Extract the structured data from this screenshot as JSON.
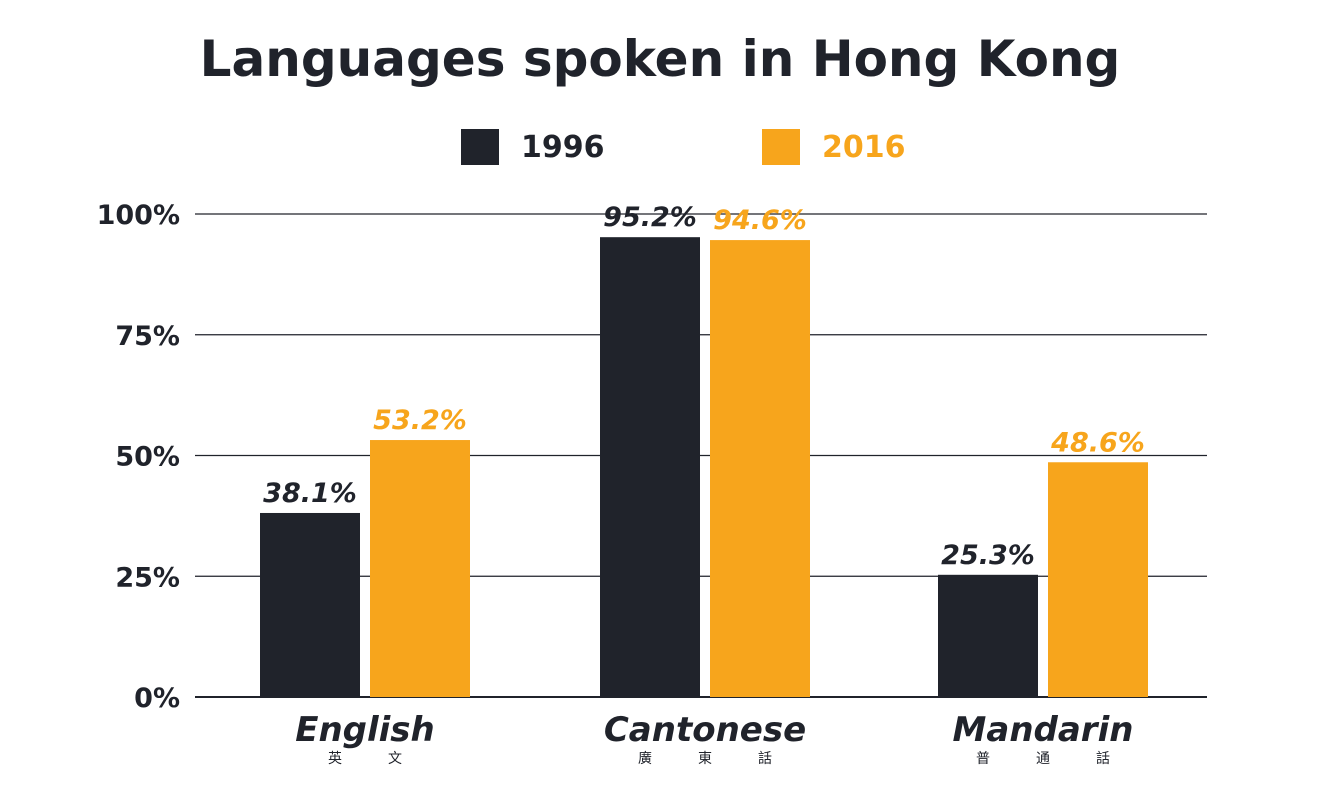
{
  "chart_data": {
    "type": "bar",
    "title": "Languages spoken in Hong Kong",
    "categories": [
      "English",
      "Cantonese",
      "Mandarin"
    ],
    "categories_sub": [
      "英 文",
      "廣 東 話",
      "普 通 話"
    ],
    "series": [
      {
        "name": "1996",
        "color": "#20232b",
        "values": [
          38.1,
          95.2,
          25.3
        ],
        "labels": [
          "38.1%",
          "95.2%",
          "25.3%"
        ]
      },
      {
        "name": "2016",
        "color": "#f7a51c",
        "values": [
          53.2,
          94.6,
          48.6
        ],
        "labels": [
          "53.2%",
          "94.6%",
          "48.6%"
        ]
      }
    ],
    "ylim": [
      0,
      100
    ],
    "yticks": [
      0,
      25,
      50,
      75,
      100
    ],
    "ytick_labels": [
      "0%",
      "25%",
      "50%",
      "75%",
      "100%"
    ],
    "grid": true,
    "legend_position": "top-center",
    "xlabel": "",
    "ylabel": ""
  }
}
